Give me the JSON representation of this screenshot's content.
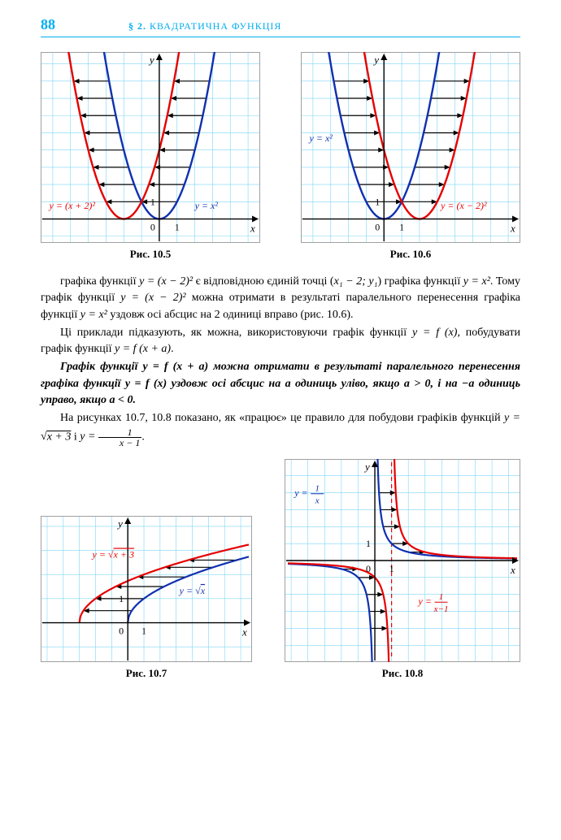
{
  "header": {
    "page": "88",
    "section_para": "§ 2.",
    "section_name": "КВАДРАТИЧНА ФУНКЦІЯ"
  },
  "fig105": {
    "caption": "Рис. 10.5",
    "grid_color": "#7dd6f7",
    "border_color": "#a0a0a0",
    "bg": "#ffffff",
    "axis_color": "#000000",
    "x_range": [
      -6.5,
      5.5
    ],
    "y_range": [
      -1.2,
      9.5
    ],
    "cell": 20,
    "curve_blue": {
      "formula": "y = x²",
      "color": "#1030b0",
      "shift": 0,
      "width": 2.4
    },
    "curve_red": {
      "formula": "y = (x + 2)²",
      "color": "#e60000",
      "shift": -2,
      "width": 2.4
    },
    "x_ticks": [
      0,
      1
    ],
    "y_ticks": [
      1
    ],
    "arrows_y": [
      1,
      2,
      3,
      4,
      5,
      6,
      7,
      8
    ],
    "arrow_dir": -1,
    "label_red": "y = (x + 2)²",
    "label_blue": "y = x²"
  },
  "fig106": {
    "caption": "Рис. 10.6",
    "grid_color": "#7dd6f7",
    "border_color": "#a0a0a0",
    "bg": "#ffffff",
    "axis_color": "#000000",
    "x_range": [
      -4.5,
      7.5
    ],
    "y_range": [
      -1.2,
      9.5
    ],
    "cell": 20,
    "curve_blue": {
      "formula": "y = x²",
      "color": "#1030b0",
      "shift": 0,
      "width": 2.4
    },
    "curve_red": {
      "formula": "y = (x − 2)²",
      "color": "#e60000",
      "shift": 2,
      "width": 2.4
    },
    "x_ticks": [
      0,
      1
    ],
    "y_ticks": [
      1
    ],
    "arrows_y": [
      1,
      2,
      3,
      4,
      5,
      6,
      7,
      8
    ],
    "arrow_dir": 1,
    "label_red": "y = (x − 2)²",
    "label_blue": "y = x²"
  },
  "fig107": {
    "caption": "Рис. 10.7",
    "grid_color": "#7dd6f7",
    "border_color": "#a0a0a0",
    "bg": "#ffffff",
    "axis_color": "#000000",
    "x_range": [
      -5.2,
      7.5
    ],
    "y_range": [
      -1.5,
      4.3
    ],
    "cell": 20,
    "curve_blue": {
      "formula": "y = √x",
      "color": "#1030b0",
      "shift": 0,
      "width": 2.2
    },
    "curve_red": {
      "formula": "y = √(x+3)",
      "color": "#e60000",
      "shift": -3,
      "width": 2.2
    },
    "arrows_y": [
      0.5,
      1,
      1.5,
      1.9,
      2.3,
      2.6
    ],
    "arrow_dx": -3,
    "label_red": "y = √(x+3)",
    "label_blue": "y = √x"
  },
  "fig108": {
    "caption": "Рис. 10.8",
    "grid_color": "#7dd6f7",
    "border_color": "#a0a0a0",
    "bg": "#ffffff",
    "axis_color": "#000000",
    "x_range": [
      -5.2,
      8.5
    ],
    "y_range": [
      -5.8,
      5.8
    ],
    "cell": 20,
    "curve_blue": {
      "formula": "y = 1/x",
      "color": "#1030b0",
      "shift": 0,
      "width": 2.2
    },
    "curve_red": {
      "formula": "y = 1/(x-1)",
      "color": "#e60000",
      "shift": 1,
      "width": 2.2
    },
    "asymptote_color": "#e60000",
    "arrows_y": [
      0.5,
      1,
      2,
      3,
      4,
      -0.5,
      -1,
      -2,
      -3,
      -4
    ],
    "arrow_dx": 1,
    "label_red": "y = 1/(x−1)",
    "label_blue": "y = 1/x"
  },
  "text": {
    "p1_a": "графіка функції ",
    "p1_b": "y = (x − 2)²",
    "p1_c": " є відповідною єдиній точці (",
    "p1_d": "x₁ − 2; y₁",
    "p1_e": ") графіка функції ",
    "p1_f": "y = x²",
    "p1_g": ". Тому графік функції ",
    "p1_h": "y = (x − 2)²",
    "p1_i": " можна отримати в результаті паралельного перенесення графіка функції ",
    "p1_j": "y = x²",
    "p1_k": " уздовж осі абсцис на 2 одиниці вправо (рис. 10.6).",
    "p2_a": "Ці приклади підказують, як можна, використовуючи графік функції ",
    "p2_b": "y = f (x)",
    "p2_c": ", побудувати графік функції ",
    "p2_d": "y = f (x + a)",
    "p2_e": ".",
    "p3_a": "Графік функції y = f (x + a) можна отримати в результаті паралельного перенесення графіка функції y = f (x) уздовж осі абсцис на a одиниць уліво, якщо a > 0, і на −a одиниць управо, якщо a < 0.",
    "p4_a": "На рисунках 10.7, 10.8 показано, як «працює» це правило для побудови графіків функцій ",
    "p4_b": "y = ",
    "p4_c": "x + 3",
    "p4_d": "  і  ",
    "p4_e": "y = ",
    "p4_f1": "1",
    "p4_f2": "x − 1",
    "p4_g": "."
  }
}
